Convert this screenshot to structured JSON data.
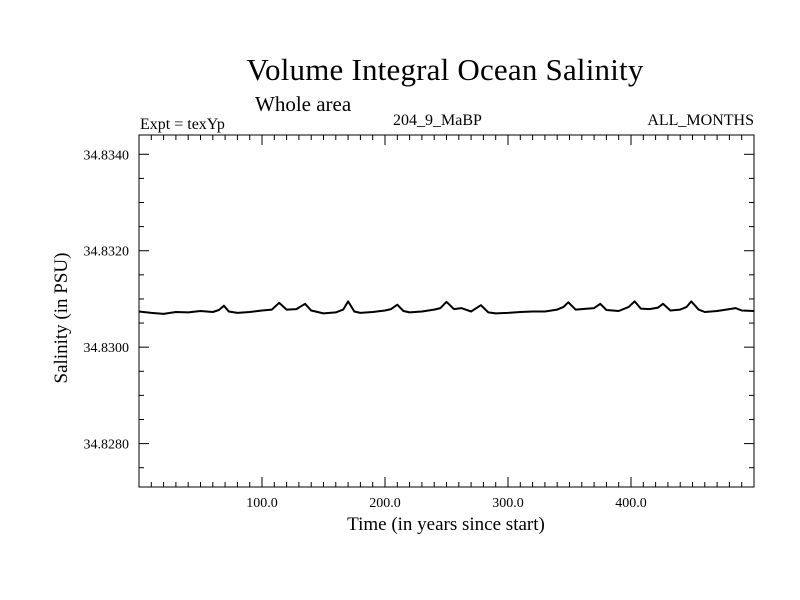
{
  "header": {
    "title": "Volume Integral Ocean Salinity",
    "subtitle": "Whole area",
    "left_label": "Expt = texYp",
    "center_label": "204_9_MaBP",
    "right_label": "ALL_MONTHS"
  },
  "chart_data": {
    "type": "line",
    "title": "Volume Integral Ocean Salinity",
    "subtitle": "Whole area",
    "xlabel": "Time (in years since start)",
    "ylabel": "Salinity (in PSU)",
    "xlim": [
      0,
      500
    ],
    "ylim": [
      34.8271,
      34.8344
    ],
    "x_ticks": [
      "100.0",
      "200.0",
      "300.0",
      "400.0"
    ],
    "x_tick_values": [
      100,
      200,
      300,
      400
    ],
    "y_ticks": [
      "34.8280",
      "34.8300",
      "34.8320",
      "34.8340"
    ],
    "y_tick_values": [
      34.828,
      34.83,
      34.832,
      34.834
    ],
    "grid": false,
    "series": [
      {
        "color": "#000000",
        "x": [
          0,
          10,
          20,
          30,
          40,
          50,
          60,
          65,
          69,
          73,
          80,
          90,
          100,
          108,
          114,
          120,
          128,
          135,
          140,
          150,
          160,
          166,
          170,
          175,
          180,
          190,
          200,
          205,
          210,
          215,
          220,
          230,
          240,
          245,
          250,
          256,
          262,
          270,
          278,
          284,
          290,
          300,
          310,
          320,
          330,
          340,
          345,
          349,
          355,
          360,
          370,
          375,
          380,
          390,
          398,
          403,
          408,
          415,
          422,
          426,
          432,
          440,
          445,
          449,
          455,
          460,
          470,
          480,
          485,
          490,
          500
        ],
        "y": [
          34.83074,
          34.83071,
          34.83069,
          34.83073,
          34.83072,
          34.83075,
          34.83073,
          34.83077,
          34.83086,
          34.83074,
          34.83071,
          34.83073,
          34.83076,
          34.83078,
          34.83092,
          34.83078,
          34.83079,
          34.8309,
          34.83076,
          34.8307,
          34.83072,
          34.83078,
          34.83095,
          34.83074,
          34.83071,
          34.83073,
          34.83076,
          34.83079,
          34.83088,
          34.83075,
          34.83072,
          34.83074,
          34.83078,
          34.83081,
          34.83094,
          34.83079,
          34.83081,
          34.83074,
          34.83087,
          34.83072,
          34.8307,
          34.83071,
          34.83073,
          34.83074,
          34.83074,
          34.83078,
          34.83083,
          34.83093,
          34.83078,
          34.83079,
          34.83081,
          34.8309,
          34.83077,
          34.83075,
          34.83083,
          34.83095,
          34.8308,
          34.83079,
          34.83082,
          34.8309,
          34.83076,
          34.83078,
          34.83083,
          34.83095,
          34.83078,
          34.83073,
          34.83075,
          34.83079,
          34.83081,
          34.83076,
          34.83075
        ]
      }
    ]
  }
}
